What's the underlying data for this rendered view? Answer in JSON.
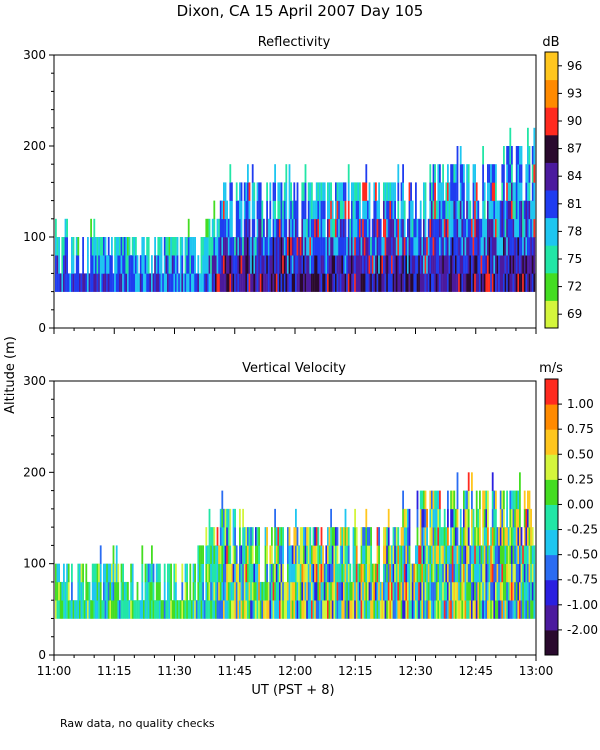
{
  "figure": {
    "title": "Dixon, CA 15 April 2007  Day 105",
    "shared_ylabel": "Altitude (m)",
    "footnote": "Raw data, no quality checks"
  },
  "chart_data": [
    {
      "type": "heatmap",
      "title": "Reflectivity",
      "xlabel": "",
      "ylabel": "Altitude (m)",
      "ylim": [
        0,
        300
      ],
      "yticks": [
        "0",
        "100",
        "200",
        "300"
      ],
      "xlim_minutes_after_11UT": [
        0,
        120
      ],
      "colorbar": {
        "unit": "dB",
        "labels": [
          "69",
          "72",
          "75",
          "78",
          "81",
          "84",
          "87",
          "90",
          "93",
          "96"
        ],
        "colors": [
          "#d4f53c",
          "#44dd22",
          "#22e6a6",
          "#1ec6f0",
          "#1f3cf0",
          "#4b1a9e",
          "#2a0a2e",
          "#ff2a1f",
          "#ff8a00",
          "#ffc61e"
        ]
      },
      "data_floor_m": 40,
      "echo_top_profile_m": [
        {
          "x_minutes": 0,
          "top_m": 100
        },
        {
          "x_minutes": 27,
          "top_m": 100
        },
        {
          "x_minutes": 36,
          "top_m": 105
        },
        {
          "x_minutes": 40,
          "top_m": 120
        },
        {
          "x_minutes": 42,
          "top_m": 160
        },
        {
          "x_minutes": 45,
          "top_m": 165
        },
        {
          "x_minutes": 60,
          "top_m": 165
        },
        {
          "x_minutes": 80,
          "top_m": 150
        },
        {
          "x_minutes": 90,
          "top_m": 155
        },
        {
          "x_minutes": 95,
          "top_m": 180
        },
        {
          "x_minutes": 110,
          "top_m": 190
        },
        {
          "x_minutes": 120,
          "top_m": 195
        }
      ]
    },
    {
      "type": "heatmap",
      "title": "Vertical Velocity",
      "xlabel": "UT  (PST + 8)",
      "ylabel": "Altitude (m)",
      "ylim": [
        0,
        300
      ],
      "yticks": [
        "0",
        "100",
        "200",
        "300"
      ],
      "xticks": [
        "11:00",
        "11:15",
        "11:30",
        "11:45",
        "12:00",
        "12:15",
        "12:30",
        "12:45",
        "13:00"
      ],
      "xlim_minutes_after_11UT": [
        0,
        120
      ],
      "colorbar": {
        "unit": "m/s",
        "labels": [
          "-2.00",
          "-1.00",
          "-0.75",
          "-0.50",
          "-0.25",
          "0.00",
          "0.25",
          "0.50",
          "0.75",
          "1.00"
        ],
        "colors": [
          "#2a0a2e",
          "#4b1a9e",
          "#2a1fe0",
          "#2a6cf2",
          "#1ec6f0",
          "#22e6a6",
          "#44dd22",
          "#d4f53c",
          "#ffc61e",
          "#ff8a00",
          "#ff2a1f"
        ]
      },
      "data_floor_m": 40,
      "echo_top_profile_m": [
        {
          "x_minutes": 0,
          "top_m": 100
        },
        {
          "x_minutes": 33,
          "top_m": 100
        },
        {
          "x_minutes": 40,
          "top_m": 140
        },
        {
          "x_minutes": 42,
          "top_m": 160
        },
        {
          "x_minutes": 47,
          "top_m": 150
        },
        {
          "x_minutes": 60,
          "top_m": 140
        },
        {
          "x_minutes": 85,
          "top_m": 140
        },
        {
          "x_minutes": 90,
          "top_m": 170
        },
        {
          "x_minutes": 105,
          "top_m": 180
        },
        {
          "x_minutes": 120,
          "top_m": 190
        }
      ]
    }
  ]
}
